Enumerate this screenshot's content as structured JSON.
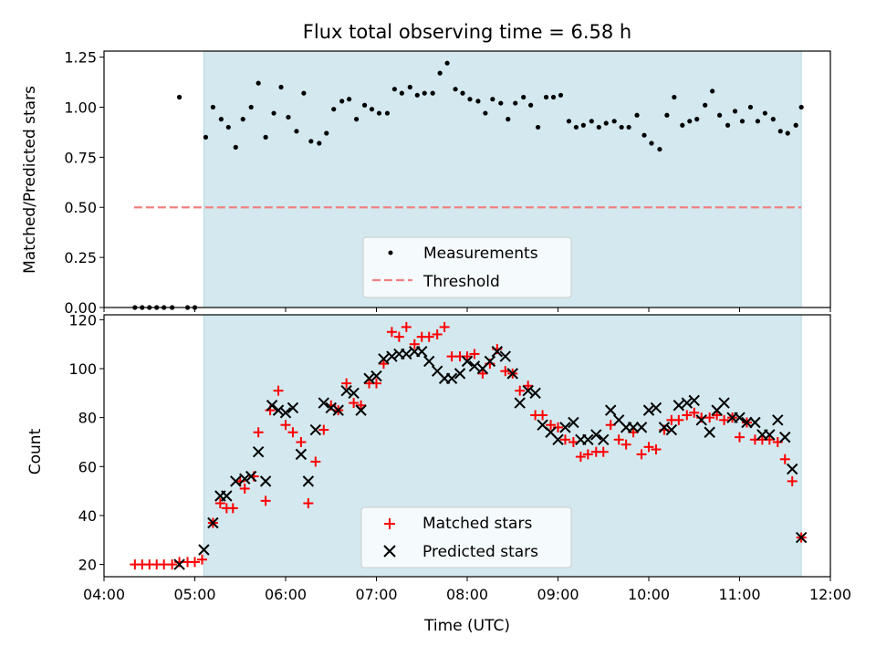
{
  "figure": {
    "title": "Flux total observing time = 6.58 h"
  },
  "colors": {
    "shade": "#d3e9ef",
    "measurement": "#000000",
    "threshold": "#f08080",
    "matched": "#ff0000",
    "predicted": "#000000"
  },
  "chart_data": [
    {
      "type": "scatter",
      "panel": "top",
      "ylabel": "Matched/Predicted stars",
      "xlim": [
        4.0,
        12.0
      ],
      "ylim": [
        0.0,
        1.28
      ],
      "yticks": [
        0.0,
        0.25,
        0.5,
        0.75,
        1.0,
        1.25
      ],
      "ytick_labels": [
        "0.00",
        "0.25",
        "0.50",
        "0.75",
        "1.00",
        "1.25"
      ],
      "shaded_x_range": [
        5.1,
        11.68
      ],
      "legend": [
        "Measurements",
        "Threshold"
      ],
      "legend_position": "lower-center",
      "threshold": {
        "name": "Threshold",
        "y": 0.5,
        "x_range": [
          4.33,
          11.68
        ]
      },
      "series": [
        {
          "name": "Measurements",
          "points": [
            [
              4.34,
              0.0
            ],
            [
              4.42,
              0.0
            ],
            [
              4.5,
              0.0
            ],
            [
              4.58,
              0.0
            ],
            [
              4.66,
              0.0
            ],
            [
              4.75,
              0.0
            ],
            [
              4.83,
              1.05
            ],
            [
              4.92,
              0.0
            ],
            [
              5.0,
              0.0
            ],
            [
              5.12,
              0.85
            ],
            [
              5.2,
              1.0
            ],
            [
              5.29,
              0.94
            ],
            [
              5.37,
              0.9
            ],
            [
              5.45,
              0.8
            ],
            [
              5.53,
              0.94
            ],
            [
              5.62,
              1.0
            ],
            [
              5.7,
              1.12
            ],
            [
              5.78,
              0.85
            ],
            [
              5.87,
              0.97
            ],
            [
              5.95,
              1.1
            ],
            [
              6.03,
              0.95
            ],
            [
              6.12,
              0.88
            ],
            [
              6.2,
              1.07
            ],
            [
              6.28,
              0.83
            ],
            [
              6.37,
              0.82
            ],
            [
              6.45,
              0.87
            ],
            [
              6.53,
              0.99
            ],
            [
              6.62,
              1.03
            ],
            [
              6.7,
              1.04
            ],
            [
              6.78,
              0.94
            ],
            [
              6.87,
              1.01
            ],
            [
              6.95,
              0.99
            ],
            [
              7.03,
              0.97
            ],
            [
              7.12,
              0.97
            ],
            [
              7.2,
              1.09
            ],
            [
              7.28,
              1.07
            ],
            [
              7.37,
              1.1
            ],
            [
              7.45,
              1.06
            ],
            [
              7.53,
              1.07
            ],
            [
              7.62,
              1.07
            ],
            [
              7.7,
              1.17
            ],
            [
              7.78,
              1.22
            ],
            [
              7.87,
              1.09
            ],
            [
              7.95,
              1.07
            ],
            [
              8.03,
              1.04
            ],
            [
              8.12,
              1.03
            ],
            [
              8.2,
              0.97
            ],
            [
              8.28,
              1.04
            ],
            [
              8.37,
              1.02
            ],
            [
              8.45,
              0.94
            ],
            [
              8.53,
              1.02
            ],
            [
              8.62,
              1.05
            ],
            [
              8.7,
              1.01
            ],
            [
              8.78,
              0.9
            ],
            [
              8.87,
              1.05
            ],
            [
              8.95,
              1.05
            ],
            [
              9.03,
              1.06
            ],
            [
              9.12,
              0.93
            ],
            [
              9.2,
              0.9
            ],
            [
              9.28,
              0.91
            ],
            [
              9.37,
              0.93
            ],
            [
              9.45,
              0.9
            ],
            [
              9.53,
              0.92
            ],
            [
              9.62,
              0.93
            ],
            [
              9.7,
              0.9
            ],
            [
              9.78,
              0.9
            ],
            [
              9.87,
              0.96
            ],
            [
              9.95,
              0.86
            ],
            [
              10.03,
              0.82
            ],
            [
              10.12,
              0.79
            ],
            [
              10.2,
              0.96
            ],
            [
              10.28,
              1.05
            ],
            [
              10.37,
              0.91
            ],
            [
              10.45,
              0.93
            ],
            [
              10.53,
              0.94
            ],
            [
              10.62,
              1.01
            ],
            [
              10.7,
              1.08
            ],
            [
              10.78,
              0.96
            ],
            [
              10.87,
              0.91
            ],
            [
              10.95,
              0.98
            ],
            [
              11.03,
              0.93
            ],
            [
              11.12,
              1.0
            ],
            [
              11.2,
              0.93
            ],
            [
              11.28,
              0.97
            ],
            [
              11.37,
              0.94
            ],
            [
              11.45,
              0.88
            ],
            [
              11.53,
              0.87
            ],
            [
              11.62,
              0.91
            ],
            [
              11.68,
              1.0
            ]
          ]
        }
      ]
    },
    {
      "type": "scatter",
      "panel": "bottom",
      "ylabel": "Count",
      "xlabel": "Time (UTC)",
      "xlim": [
        4.0,
        12.0
      ],
      "ylim": [
        15,
        122
      ],
      "yticks": [
        20,
        40,
        60,
        80,
        100,
        120
      ],
      "ytick_labels": [
        "20",
        "40",
        "60",
        "80",
        "100",
        "120"
      ],
      "xticks": [
        4,
        5,
        6,
        7,
        8,
        9,
        10,
        11,
        12
      ],
      "xtick_labels": [
        "04:00",
        "05:00",
        "06:00",
        "07:00",
        "08:00",
        "09:00",
        "10:00",
        "11:00",
        "12:00"
      ],
      "shaded_x_range": [
        5.1,
        11.68
      ],
      "legend": [
        "Matched stars",
        "Predicted stars"
      ],
      "legend_position": "lower-center",
      "series": [
        {
          "name": "Matched stars",
          "marker": "plus",
          "points": [
            [
              4.34,
              20
            ],
            [
              4.42,
              20
            ],
            [
              4.5,
              20
            ],
            [
              4.58,
              20
            ],
            [
              4.66,
              20
            ],
            [
              4.75,
              20
            ],
            [
              4.83,
              21
            ],
            [
              4.92,
              21
            ],
            [
              5.0,
              21
            ],
            [
              5.08,
              22
            ],
            [
              5.2,
              37
            ],
            [
              5.28,
              45
            ],
            [
              5.35,
              43
            ],
            [
              5.42,
              43
            ],
            [
              5.5,
              54
            ],
            [
              5.55,
              51
            ],
            [
              5.65,
              56
            ],
            [
              5.7,
              74
            ],
            [
              5.78,
              46
            ],
            [
              5.83,
              83
            ],
            [
              5.92,
              91
            ],
            [
              6.0,
              77
            ],
            [
              6.08,
              74
            ],
            [
              6.17,
              70
            ],
            [
              6.25,
              45
            ],
            [
              6.33,
              62
            ],
            [
              6.42,
              75
            ],
            [
              6.5,
              85
            ],
            [
              6.58,
              83
            ],
            [
              6.67,
              94
            ],
            [
              6.75,
              86
            ],
            [
              6.83,
              85
            ],
            [
              6.92,
              94
            ],
            [
              7.0,
              94
            ],
            [
              7.08,
              102
            ],
            [
              7.17,
              115
            ],
            [
              7.25,
              113
            ],
            [
              7.33,
              117
            ],
            [
              7.42,
              110
            ],
            [
              7.5,
              113
            ],
            [
              7.58,
              113
            ],
            [
              7.67,
              114
            ],
            [
              7.75,
              117
            ],
            [
              7.83,
              105
            ],
            [
              7.92,
              105
            ],
            [
              8.0,
              105
            ],
            [
              8.08,
              106
            ],
            [
              8.17,
              98
            ],
            [
              8.25,
              102
            ],
            [
              8.33,
              108
            ],
            [
              8.42,
              99
            ],
            [
              8.5,
              98
            ],
            [
              8.58,
              91
            ],
            [
              8.67,
              93
            ],
            [
              8.75,
              81
            ],
            [
              8.83,
              81
            ],
            [
              8.92,
              77
            ],
            [
              9.0,
              76
            ],
            [
              9.08,
              71
            ],
            [
              9.17,
              70
            ],
            [
              9.25,
              64
            ],
            [
              9.33,
              65
            ],
            [
              9.42,
              66
            ],
            [
              9.5,
              66
            ],
            [
              9.58,
              77
            ],
            [
              9.67,
              71
            ],
            [
              9.75,
              69
            ],
            [
              9.83,
              74
            ],
            [
              9.92,
              65
            ],
            [
              10.0,
              68
            ],
            [
              10.08,
              67
            ],
            [
              10.17,
              75
            ],
            [
              10.25,
              79
            ],
            [
              10.33,
              79
            ],
            [
              10.42,
              81
            ],
            [
              10.5,
              82
            ],
            [
              10.58,
              80
            ],
            [
              10.67,
              80
            ],
            [
              10.75,
              81
            ],
            [
              10.83,
              79
            ],
            [
              10.92,
              80
            ],
            [
              11.0,
              72
            ],
            [
              11.08,
              78
            ],
            [
              11.17,
              71
            ],
            [
              11.25,
              71
            ],
            [
              11.33,
              71
            ],
            [
              11.42,
              70
            ],
            [
              11.5,
              63
            ],
            [
              11.58,
              54
            ],
            [
              11.68,
              31
            ]
          ]
        },
        {
          "name": "Predicted stars",
          "marker": "cross",
          "points": [
            [
              4.83,
              20
            ],
            [
              5.1,
              26
            ],
            [
              5.2,
              37
            ],
            [
              5.28,
              48
            ],
            [
              5.35,
              48
            ],
            [
              5.45,
              54
            ],
            [
              5.55,
              55
            ],
            [
              5.62,
              56
            ],
            [
              5.7,
              66
            ],
            [
              5.78,
              54
            ],
            [
              5.85,
              85
            ],
            [
              5.92,
              83
            ],
            [
              6.0,
              82
            ],
            [
              6.08,
              84
            ],
            [
              6.17,
              65
            ],
            [
              6.25,
              54
            ],
            [
              6.33,
              75
            ],
            [
              6.42,
              86
            ],
            [
              6.5,
              84
            ],
            [
              6.58,
              83
            ],
            [
              6.67,
              91
            ],
            [
              6.75,
              90
            ],
            [
              6.83,
              83
            ],
            [
              6.92,
              96
            ],
            [
              7.0,
              97
            ],
            [
              7.08,
              104
            ],
            [
              7.17,
              105
            ],
            [
              7.25,
              106
            ],
            [
              7.33,
              106
            ],
            [
              7.42,
              107
            ],
            [
              7.5,
              107
            ],
            [
              7.58,
              103
            ],
            [
              7.67,
              99
            ],
            [
              7.75,
              96
            ],
            [
              7.83,
              96
            ],
            [
              7.92,
              98
            ],
            [
              8.0,
              103
            ],
            [
              8.08,
              101
            ],
            [
              8.17,
              100
            ],
            [
              8.25,
              103
            ],
            [
              8.33,
              107
            ],
            [
              8.42,
              105
            ],
            [
              8.5,
              98
            ],
            [
              8.58,
              86
            ],
            [
              8.67,
              91
            ],
            [
              8.75,
              90
            ],
            [
              8.83,
              77
            ],
            [
              8.92,
              74
            ],
            [
              9.0,
              71
            ],
            [
              9.08,
              76
            ],
            [
              9.17,
              78
            ],
            [
              9.25,
              71
            ],
            [
              9.33,
              71
            ],
            [
              9.42,
              73
            ],
            [
              9.5,
              71
            ],
            [
              9.58,
              83
            ],
            [
              9.67,
              79
            ],
            [
              9.75,
              76
            ],
            [
              9.83,
              76
            ],
            [
              9.92,
              76
            ],
            [
              10.0,
              83
            ],
            [
              10.08,
              84
            ],
            [
              10.17,
              76
            ],
            [
              10.25,
              75
            ],
            [
              10.33,
              85
            ],
            [
              10.42,
              86
            ],
            [
              10.5,
              87
            ],
            [
              10.58,
              79
            ],
            [
              10.67,
              74
            ],
            [
              10.75,
              83
            ],
            [
              10.83,
              86
            ],
            [
              10.92,
              80
            ],
            [
              11.0,
              80
            ],
            [
              11.08,
              78
            ],
            [
              11.17,
              78
            ],
            [
              11.25,
              73
            ],
            [
              11.33,
              73
            ],
            [
              11.42,
              79
            ],
            [
              11.5,
              72
            ],
            [
              11.58,
              59
            ],
            [
              11.68,
              31
            ]
          ]
        }
      ]
    }
  ]
}
